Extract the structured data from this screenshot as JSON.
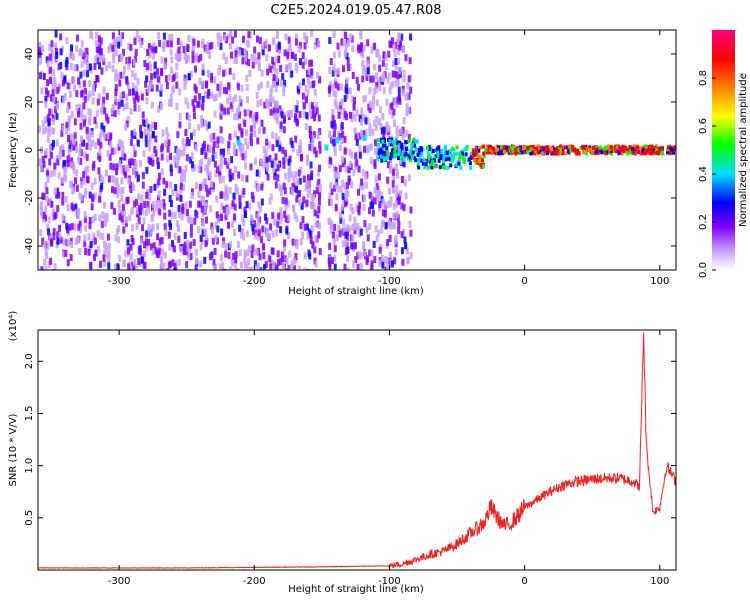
{
  "figure": {
    "title": "C2E5.2024.019.05.47.R08"
  },
  "chart_data": [
    {
      "type": "heatmap",
      "xlabel": "Height of straight line (km)",
      "ylabel": "Frequency (Hz)",
      "xlim": [
        -360,
        112
      ],
      "ylim": [
        -50,
        50
      ],
      "xticks": [
        -300,
        -200,
        -100,
        0,
        100
      ],
      "yticks": [
        -40,
        -20,
        0,
        20,
        40
      ],
      "colorbar": {
        "label": "Normalized spectral amplitude",
        "range": [
          0,
          1
        ],
        "ticks": [
          0.0,
          0.2,
          0.4,
          0.6,
          0.8
        ],
        "colormap": [
          "#ffffff",
          "#c8a0ff",
          "#8000ff",
          "#0000ff",
          "#00e0ff",
          "#00ff00",
          "#ffff00",
          "#ff8000",
          "#ff0000",
          "#ff0080"
        ]
      },
      "features": {
        "noise_region_x": [
          -360,
          -95
        ],
        "signal_band_center_hz": 0,
        "signal_start_x": -110,
        "strong_signal_x": [
          -40,
          112
        ],
        "blank_gap_x": [
          -152,
          -146
        ]
      }
    },
    {
      "type": "line",
      "xlabel": "Height of straight line (km)",
      "ylabel": "SNR (10 * V/V)",
      "scale_label": "(x10⁴)",
      "xlim": [
        -360,
        112
      ],
      "ylim": [
        0,
        2.3
      ],
      "xticks": [
        -300,
        -200,
        -100,
        0,
        100
      ],
      "yticks": [
        0.5,
        1.0,
        1.5,
        2.0
      ],
      "color": "#ee2020",
      "series": [
        {
          "x": [
            -360,
            -250,
            -150,
            -100,
            -90,
            -80,
            -70,
            -60,
            -50,
            -40,
            -30,
            -25,
            -20,
            -15,
            -10,
            -5,
            0,
            10,
            20,
            30,
            40,
            50,
            60,
            70,
            80,
            85,
            88,
            90,
            95,
            100,
            105,
            112
          ],
          "y": [
            0.02,
            0.02,
            0.03,
            0.04,
            0.06,
            0.1,
            0.15,
            0.18,
            0.25,
            0.35,
            0.45,
            0.6,
            0.5,
            0.42,
            0.45,
            0.52,
            0.6,
            0.68,
            0.76,
            0.82,
            0.85,
            0.87,
            0.88,
            0.88,
            0.85,
            0.8,
            2.3,
            1.2,
            0.55,
            0.6,
            1.0,
            0.85
          ]
        }
      ]
    }
  ]
}
